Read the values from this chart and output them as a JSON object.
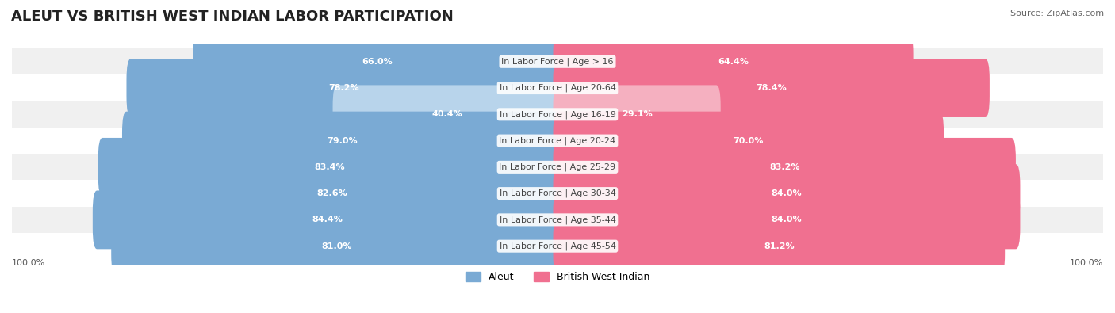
{
  "title": "ALEUT VS BRITISH WEST INDIAN LABOR PARTICIPATION",
  "source": "Source: ZipAtlas.com",
  "categories": [
    "In Labor Force | Age > 16",
    "In Labor Force | Age 20-64",
    "In Labor Force | Age 16-19",
    "In Labor Force | Age 20-24",
    "In Labor Force | Age 25-29",
    "In Labor Force | Age 30-34",
    "In Labor Force | Age 35-44",
    "In Labor Force | Age 45-54"
  ],
  "aleut_values": [
    66.0,
    78.2,
    40.4,
    79.0,
    83.4,
    82.6,
    84.4,
    81.0
  ],
  "bwi_values": [
    64.4,
    78.4,
    29.1,
    70.0,
    83.2,
    84.0,
    84.0,
    81.2
  ],
  "aleut_color": "#7aaad4",
  "aleut_color_light": "#b8d4eb",
  "bwi_color": "#f07090",
  "bwi_color_light": "#f5b0c0",
  "row_bg_even": "#f0f0f0",
  "row_bg_odd": "#ffffff",
  "max_value": 100.0,
  "title_fontsize": 13,
  "label_fontsize": 8.0,
  "value_fontsize": 8.0,
  "legend_fontsize": 9,
  "source_fontsize": 8
}
